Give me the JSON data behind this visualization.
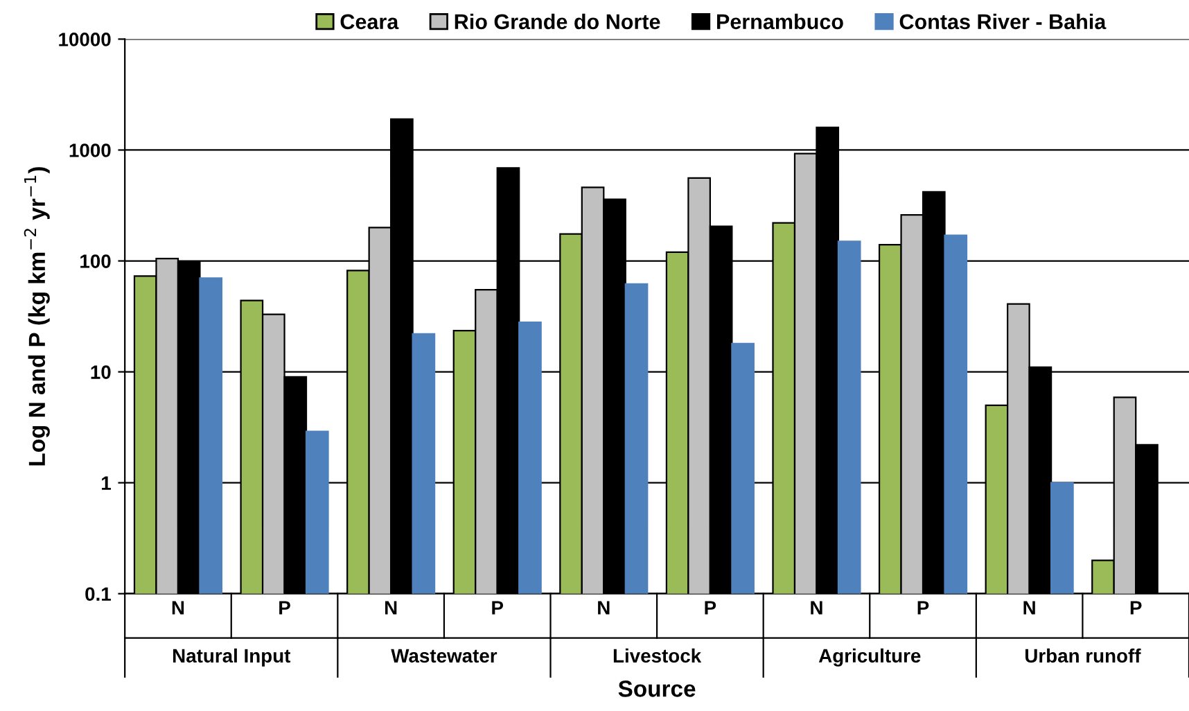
{
  "chart_data": {
    "type": "bar",
    "xlabel": "Source",
    "ylabel": "Log N and P (kg km$^{−2}$ yr$^{−1}$)",
    "categories": [
      "N",
      "P",
      "N",
      "P",
      "N",
      "P",
      "N",
      "P",
      "N",
      "P"
    ],
    "annotations": [
      "Natural Input",
      "Wastewater",
      "Livestock",
      "Agriculture",
      "Urban runoff"
    ],
    "series": [
      {
        "name": "Ceara",
        "color": "#9bbb59",
        "values": [
          73,
          44,
          82,
          23.5,
          175,
          120,
          220,
          140,
          5,
          0.2
        ]
      },
      {
        "name": "Rio Grande do Norte",
        "color": "#c0c0c0",
        "values": [
          105,
          33,
          200,
          55,
          460,
          560,
          930,
          260,
          41,
          5.9
        ]
      },
      {
        "name": "Pernambuco",
        "color": "#000000",
        "values": [
          98,
          9,
          1900,
          690,
          360,
          205,
          1600,
          420,
          11,
          2.2
        ]
      },
      {
        "name": "Contas River - Bahia",
        "color": "#4f81bd",
        "values": [
          70,
          2.9,
          22,
          28,
          62,
          18,
          150,
          170,
          1.0,
          null
        ]
      }
    ],
    "log": "y",
    "ylim": [
      0.1,
      10000
    ],
    "yticks": [
      0.1,
      1,
      10,
      100,
      1000,
      10000
    ],
    "grid": "y",
    "legend": "top"
  }
}
